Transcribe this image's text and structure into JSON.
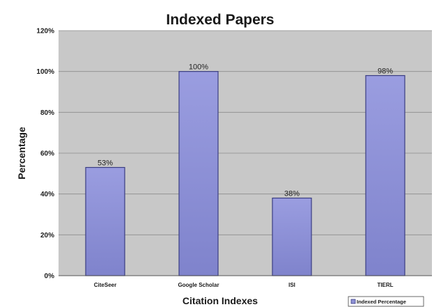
{
  "chart_data": {
    "type": "bar",
    "title": "Indexed Papers",
    "xlabel": "Citation Indexes",
    "ylabel": "Percentage",
    "categories": [
      "CiteSeer",
      "Google Scholar",
      "ISI",
      "TIERL"
    ],
    "series": [
      {
        "name": "Indexed Percentage",
        "values": [
          53,
          100,
          38,
          98
        ],
        "data_labels": [
          "53%",
          "100%",
          "38%",
          "98%"
        ]
      }
    ],
    "ylim": [
      0,
      120
    ],
    "yticks": [
      0,
      20,
      40,
      60,
      80,
      100,
      120
    ],
    "ytick_labels": [
      "0%",
      "20%",
      "40%",
      "60%",
      "80%",
      "100%",
      "120%"
    ],
    "grid": true,
    "legend": "bottom-right",
    "colors": {
      "plot_background": "#c8c8c8",
      "bar_fill": "#8f92d6",
      "bar_stroke": "#3a3d82",
      "gridline": "#8c8c8c"
    }
  }
}
